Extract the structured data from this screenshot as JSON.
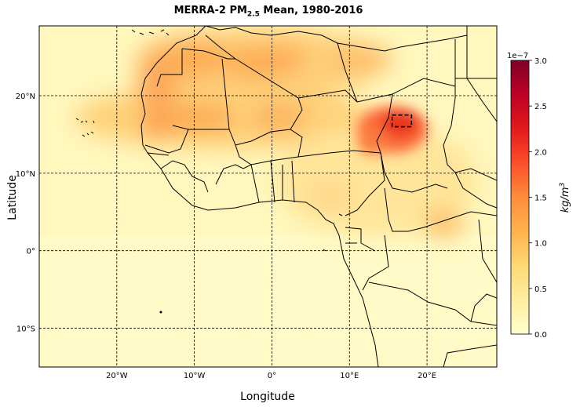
{
  "figure": {
    "title_prefix": "MERRA-2 PM",
    "title_sub": "2.5",
    "title_suffix": " Mean, 1980-2016",
    "xlabel": "Longitude",
    "ylabel": "Latitude"
  },
  "map": {
    "lon_range": [
      -30,
      29
    ],
    "lat_range": [
      -15,
      29
    ],
    "x_ticks": [
      {
        "lon": -20,
        "label": "20°W"
      },
      {
        "lon": -10,
        "label": "10°W"
      },
      {
        "lon": 0,
        "label": "0°"
      },
      {
        "lon": 10,
        "label": "10°E"
      },
      {
        "lon": 20,
        "label": "20°E"
      }
    ],
    "y_ticks": [
      {
        "lat": 20,
        "label": "20°N"
      },
      {
        "lat": 10,
        "label": "10°N"
      },
      {
        "lat": 0,
        "label": "0°"
      },
      {
        "lat": -10,
        "label": "10°S"
      }
    ],
    "highlight_box": {
      "lon": [
        15.5,
        18
      ],
      "lat": [
        16,
        17.5
      ]
    }
  },
  "colorbar": {
    "label": "kg/m",
    "label_power": "3",
    "exponent": "1e−7",
    "min": 0.0,
    "max": 3.0,
    "ticks": [
      "0.0",
      "0.5",
      "1.0",
      "1.5",
      "2.0",
      "2.5",
      "3.0"
    ],
    "colormap": "YlOrRd",
    "colors": [
      "#ffffcc",
      "#ffeda0",
      "#fed976",
      "#feb24c",
      "#fd8d3c",
      "#fc4e2a",
      "#e31a1c",
      "#bd0026",
      "#800026"
    ]
  },
  "chart_data": {
    "type": "heatmap",
    "title": "MERRA-2 PM2.5 Mean, 1980-2016",
    "xlabel": "Longitude",
    "ylabel": "Latitude",
    "units": "kg/m3 (×1e−7)",
    "xlim": [
      -30,
      29
    ],
    "ylim": [
      -15,
      29
    ],
    "vmin": 0.0,
    "vmax": 3.0,
    "hotspots": [
      {
        "lon": 17,
        "lat": 16.5,
        "value": 2.3
      },
      {
        "lon": 14,
        "lat": 15.5,
        "value": 1.7
      },
      {
        "lon": -12,
        "lat": 25,
        "value": 1.3
      },
      {
        "lon": -5,
        "lat": 25,
        "value": 1.3
      },
      {
        "lon": -14,
        "lat": 23,
        "value": 1.2
      },
      {
        "lon": -10,
        "lat": 18,
        "value": 1.1
      },
      {
        "lon": 0,
        "lat": 18,
        "value": 1.1
      },
      {
        "lon": -16,
        "lat": 16,
        "value": 1.0
      },
      {
        "lon": 8,
        "lat": 25,
        "value": 0.9
      },
      {
        "lon": 3,
        "lat": 13,
        "value": 0.7
      },
      {
        "lon": 23,
        "lat": 4,
        "value": 0.7
      }
    ],
    "background_value": 0.2
  }
}
